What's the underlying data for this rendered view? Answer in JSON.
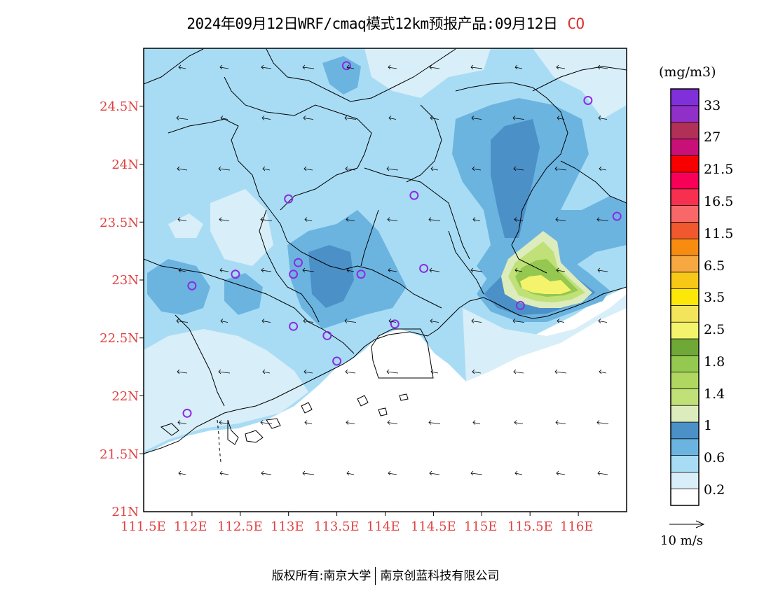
{
  "title": {
    "text": "2024年09月12日WRF/cmaq模式12km预报产品:09月12日",
    "variable": "CO"
  },
  "map": {
    "lat_labels": [
      "24.5N",
      "24N",
      "23.5N",
      "23N",
      "22.5N",
      "22N",
      "21.5N",
      "21N"
    ],
    "lon_labels": [
      "111.5E",
      "112E",
      "112.5E",
      "113E",
      "113.5E",
      "114E",
      "114.5E",
      "115E",
      "115.5E",
      "116E"
    ],
    "extent": {
      "lon_min": 111.5,
      "lon_max": 116.5,
      "lat_min": 21.0,
      "lat_max": 25.0
    }
  },
  "colorbar": {
    "units": "(mg/m3)",
    "colors": [
      "#ffffff",
      "#d8eef8",
      "#a8dcf4",
      "#6cb4e0",
      "#4c90c8",
      "#dcecbc",
      "#c0e078",
      "#b0d860",
      "#94c850",
      "#70a838",
      "#f4f46c",
      "#f4e45c",
      "#fce808",
      "#f8c818",
      "#f8a840",
      "#f88c10",
      "#f05830",
      "#f86868",
      "#f83050",
      "#f80058",
      "#f80000",
      "#c81078",
      "#b03058",
      "#9030c8",
      "#8030d8"
    ],
    "labels": [
      "0.2",
      "0.6",
      "1",
      "1.4",
      "1.8",
      "2.5",
      "3.5",
      "6.5",
      "11.5",
      "16.5",
      "21.5",
      "27",
      "33"
    ]
  },
  "vector": {
    "label": "10 m/s"
  },
  "stations": [
    {
      "lon": 113.6,
      "lat": 24.85
    },
    {
      "lon": 116.1,
      "lat": 24.55
    },
    {
      "lon": 113.0,
      "lat": 23.7
    },
    {
      "lon": 114.3,
      "lat": 23.73
    },
    {
      "lon": 116.4,
      "lat": 23.55
    },
    {
      "lon": 112.45,
      "lat": 23.05
    },
    {
      "lon": 113.1,
      "lat": 23.15
    },
    {
      "lon": 113.05,
      "lat": 23.05
    },
    {
      "lon": 113.75,
      "lat": 23.05
    },
    {
      "lon": 114.4,
      "lat": 23.1
    },
    {
      "lon": 112.0,
      "lat": 22.95
    },
    {
      "lon": 113.05,
      "lat": 22.6
    },
    {
      "lon": 113.4,
      "lat": 22.52
    },
    {
      "lon": 114.1,
      "lat": 22.62
    },
    {
      "lon": 113.5,
      "lat": 22.3
    },
    {
      "lon": 111.95,
      "lat": 21.85
    },
    {
      "lon": 115.4,
      "lat": 22.78
    }
  ],
  "footer": {
    "left": "版权所有:南京大学",
    "right": "南京创蓝科技有限公司"
  }
}
